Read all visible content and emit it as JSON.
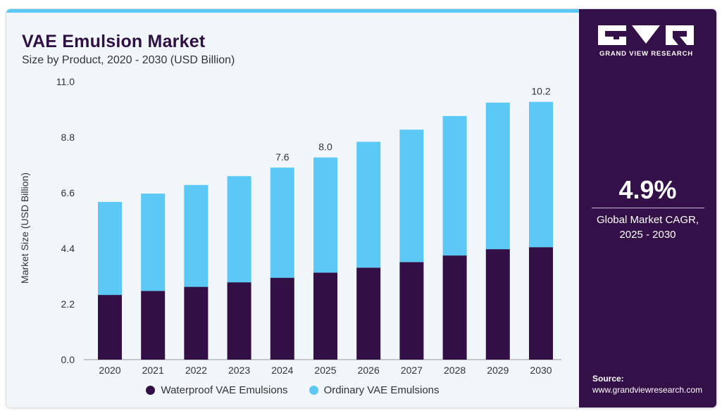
{
  "header": {
    "title": "VAE Emulsion Market",
    "subtitle": "Size by Product, 2020 - 2030 (USD Billion)"
  },
  "sidebar": {
    "brand": "GRAND VIEW RESEARCH",
    "logo_icon": "grand-view-research-logo-icon",
    "cagr_value": "4.9%",
    "cagr_label_line1": "Global Market CAGR,",
    "cagr_label_line2": "2025 - 2030",
    "source_title": "Source:",
    "source_url": "www.grandviewresearch.com"
  },
  "colors": {
    "waterproof": "#321045",
    "ordinary": "#5bc8f5",
    "panel": "#331048",
    "background": "#f1f6fb"
  },
  "chart_data": {
    "type": "bar",
    "stacked": true,
    "categories": [
      "2020",
      "2021",
      "2022",
      "2023",
      "2024",
      "2025",
      "2026",
      "2027",
      "2028",
      "2029",
      "2030"
    ],
    "series": [
      {
        "name": "Waterproof VAE Emulsions",
        "values": [
          2.56,
          2.72,
          2.88,
          3.06,
          3.24,
          3.44,
          3.64,
          3.86,
          4.12,
          4.37,
          4.45
        ]
      },
      {
        "name": "Ordinary VAE Emulsions",
        "values": [
          3.68,
          3.85,
          4.03,
          4.2,
          4.36,
          4.56,
          4.98,
          5.24,
          5.52,
          5.8,
          5.75
        ]
      }
    ],
    "totals_labels": {
      "2024": "7.6",
      "2025": "8.0",
      "2030": "10.2"
    },
    "ylabel": "Market Size (USD Billion)",
    "yticks": [
      "0.0",
      "2.2",
      "4.4",
      "6.6",
      "8.8",
      "11.0"
    ],
    "ylim": [
      0,
      11
    ],
    "grid": false,
    "legend_position": "bottom"
  }
}
